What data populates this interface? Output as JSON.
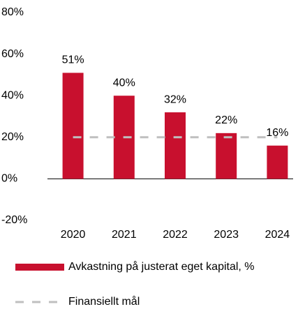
{
  "chart_data": {
    "type": "bar",
    "categories": [
      "2020",
      "2021",
      "2022",
      "2023",
      "2024"
    ],
    "series": [
      {
        "name": "Avkastning på justerat eget kapital, %",
        "color": "#c8102e",
        "type": "bar",
        "values": [
          51,
          40,
          32,
          22,
          16
        ],
        "value_labels": [
          "51%",
          "40%",
          "32%",
          "22%",
          "16%"
        ]
      },
      {
        "name": "Finansiellt mål",
        "color": "#bfbfbf",
        "type": "line",
        "dashed": true,
        "values": [
          20,
          20,
          20,
          20,
          20
        ]
      }
    ],
    "ylim": [
      -20,
      80
    ],
    "yticks": [
      {
        "value": -20,
        "label": "-20%"
      },
      {
        "value": 0,
        "label": "0%"
      },
      {
        "value": 20,
        "label": "20%"
      },
      {
        "value": 40,
        "label": "40%"
      },
      {
        "value": 60,
        "label": "60%"
      },
      {
        "value": 80,
        "label": "80%"
      }
    ],
    "grid": false,
    "legend": "bottom"
  }
}
